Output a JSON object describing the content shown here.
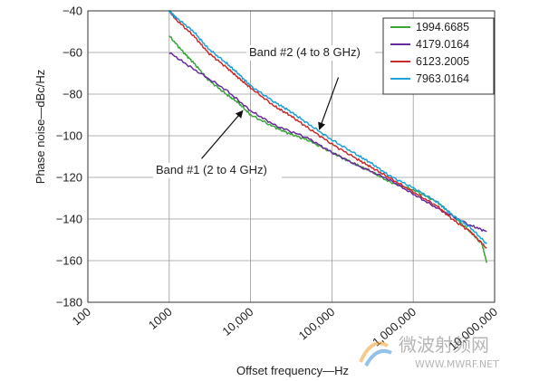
{
  "chart_data": {
    "type": "line",
    "title": "",
    "xlabel": "Offset frequency—Hz",
    "ylabel": "Phase noise—dBc/Hz",
    "xscale": "log",
    "xlim": [
      100,
      10000000
    ],
    "ylim": [
      -180,
      -40
    ],
    "grid": true,
    "legend_placement": "top-right",
    "x_tick_values": [
      100,
      1000,
      10000,
      100000,
      1000000,
      10000000
    ],
    "x_tick_labels": [
      "100",
      "1000",
      "10,000",
      "100,000",
      "1,000,000",
      "10,000,000"
    ],
    "y_tick_values": [
      -40,
      -60,
      -80,
      -100,
      -120,
      -140,
      -160,
      -180
    ],
    "y_tick_labels": [
      "−40",
      "−60",
      "−80",
      "−100",
      "−120",
      "−140",
      "−160",
      "−180"
    ],
    "series": [
      {
        "name": "1994.6685",
        "color": "#3aa53a",
        "x": [
          1000,
          1500,
          2000,
          3000,
          5000,
          7000,
          10000,
          20000,
          30000,
          50000,
          100000,
          200000,
          300000,
          500000,
          1000000,
          2000000,
          3000000,
          5000000,
          7000000,
          8000000
        ],
        "y": [
          -52,
          -60,
          -65,
          -73,
          -80,
          -84,
          -90,
          -96,
          -99,
          -102,
          -108,
          -114,
          -117,
          -122,
          -126,
          -132,
          -138,
          -146,
          -152,
          -161
        ]
      },
      {
        "name": "4179.0164",
        "color": "#6a2a9e",
        "x": [
          1000,
          2000,
          5000,
          10000,
          20000,
          50000,
          100000,
          200000,
          500000,
          1000000,
          2000000,
          5000000,
          8000000
        ],
        "y": [
          -60,
          -68,
          -78,
          -88,
          -95,
          -101,
          -108,
          -114,
          -121,
          -128,
          -135,
          -143,
          -146
        ]
      },
      {
        "name": "6123.2005",
        "color": "#cc2b2b",
        "x": [
          1000,
          1200,
          2000,
          3000,
          5000,
          7000,
          10000,
          20000,
          30000,
          50000,
          100000,
          200000,
          300000,
          500000,
          1000000,
          2000000,
          3000000,
          5000000,
          8000000
        ],
        "y": [
          -40,
          -44,
          -52,
          -60,
          -67,
          -72,
          -77,
          -86,
          -90,
          -96,
          -104,
          -111,
          -115,
          -120,
          -127,
          -134,
          -140,
          -146,
          -154
        ]
      },
      {
        "name": "7963.0164",
        "color": "#1ea0d8",
        "x": [
          1000,
          1200,
          2000,
          3000,
          5000,
          7000,
          10000,
          20000,
          30000,
          50000,
          100000,
          200000,
          300000,
          500000,
          1000000,
          2000000,
          3000000,
          5000000,
          8000000
        ],
        "y": [
          -40,
          -43,
          -50,
          -58,
          -65,
          -70,
          -76,
          -84,
          -88,
          -94,
          -102,
          -109,
          -113,
          -119,
          -125,
          -132,
          -138,
          -144,
          -152
        ]
      }
    ],
    "annotations": [
      {
        "text": "Band #2 (4 to 8 GHz)",
        "arrow_from_x": 120000,
        "arrow_from_y": -72,
        "arrow_to_x": 70000,
        "arrow_to_y": -97
      },
      {
        "text": "Band #1 (2 to 4 GHz)",
        "arrow_from_x": 2500,
        "arrow_from_y": -111,
        "arrow_to_x": 8000,
        "arrow_to_y": -88
      }
    ]
  },
  "watermark": {
    "text_cn": "微波射频网",
    "text_url": "WWW.MWRF.NET"
  }
}
